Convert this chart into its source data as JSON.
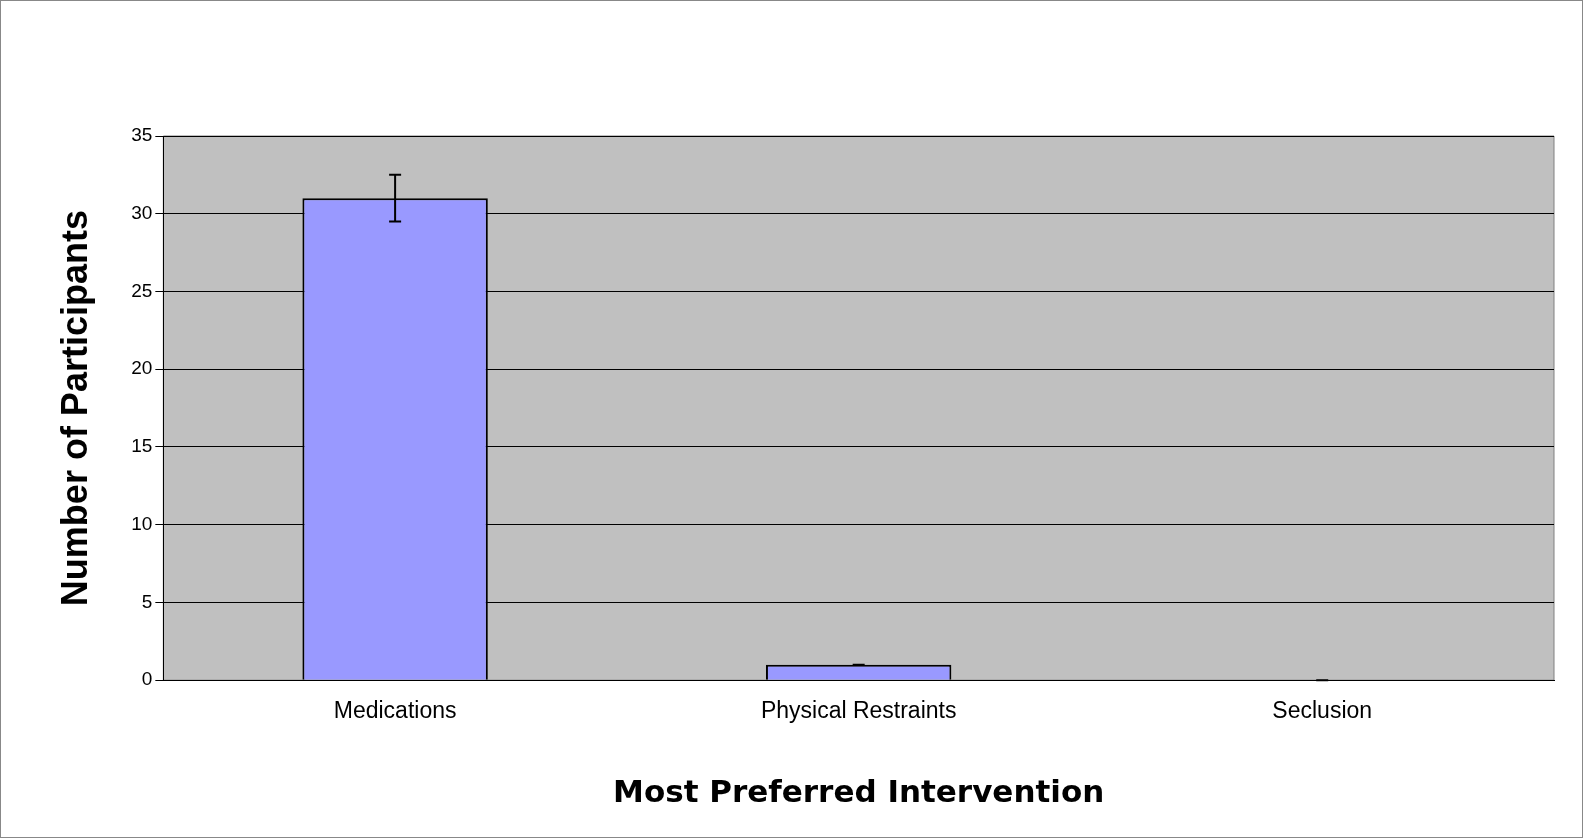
{
  "chart_data": {
    "type": "bar",
    "xlabel": "Most Preferred Intervention",
    "ylabel": "Number of Participants",
    "categories": [
      "Medications",
      "Physical Restraints",
      "Seclusion"
    ],
    "values": [
      31,
      1,
      0
    ],
    "errors": [
      1.5,
      0,
      0
    ],
    "color": "#9999ff",
    "ylim": [
      0,
      35
    ],
    "yticks": [
      0,
      5,
      10,
      15,
      20,
      25,
      30,
      35
    ],
    "grid": "y",
    "legend": false
  }
}
